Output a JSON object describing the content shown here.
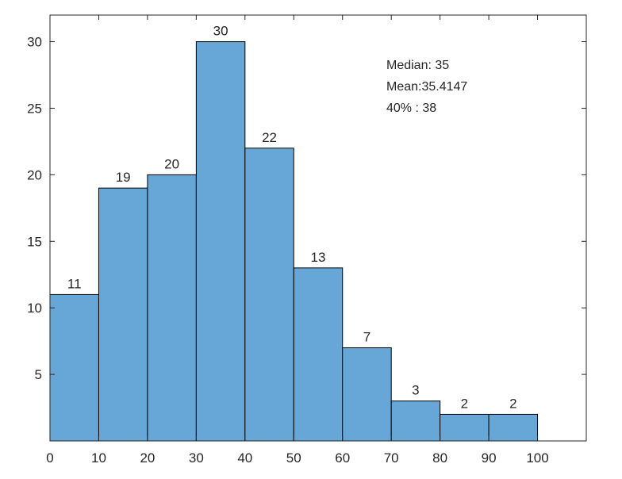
{
  "chart_data": {
    "type": "bar",
    "bin_edges": [
      0,
      10,
      20,
      30,
      40,
      50,
      60,
      70,
      80,
      90,
      100
    ],
    "values": [
      11,
      19,
      20,
      30,
      22,
      13,
      7,
      3,
      2,
      2
    ],
    "data_labels": [
      "11",
      "19",
      "20",
      "30",
      "22",
      "13",
      "7",
      "3",
      "2",
      "2"
    ],
    "xlim": [
      0,
      110
    ],
    "ylim": [
      0,
      32
    ],
    "x_ticks": [
      0,
      10,
      20,
      30,
      40,
      50,
      60,
      70,
      80,
      90,
      100
    ],
    "x_tick_labels": [
      "0",
      "10",
      "20",
      "30",
      "40",
      "50",
      "60",
      "70",
      "80",
      "90",
      "100"
    ],
    "y_ticks": [
      5,
      10,
      15,
      20,
      25,
      30
    ],
    "y_tick_labels": [
      "5",
      "10",
      "15",
      "20",
      "25",
      "30"
    ],
    "bar_color": "#67a7d7",
    "edge_color": "#000000",
    "annotations": [
      "Median: 35",
      "Mean:35.4147",
      "40% : 38"
    ],
    "title": "",
    "xlabel": "",
    "ylabel": "",
    "grid": false,
    "legend": "none"
  }
}
